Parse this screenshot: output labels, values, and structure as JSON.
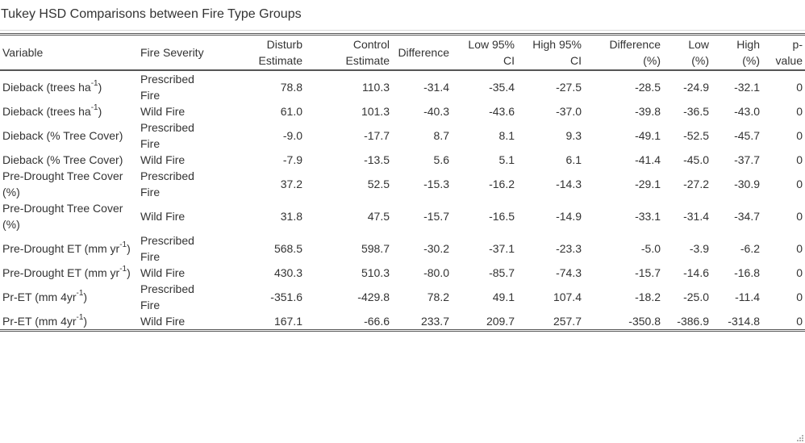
{
  "title": "Tukey HSD Comparisons between Fire Type Groups",
  "columns": {
    "variable": "Variable",
    "fire_severity": "Fire Severity",
    "disturb_1": "Disturb",
    "disturb_2": "Estimate",
    "control_1": "Control",
    "control_2": "Estimate",
    "difference": "Difference",
    "low_1": "Low 95%",
    "low_2": "CI",
    "high_1": "High 95%",
    "high_2": "CI",
    "diffpct_1": "Difference",
    "diffpct_2": "(%)",
    "lowpct_1": "Low",
    "lowpct_2": "(%)",
    "highpct_1": "High",
    "highpct_2": "(%)",
    "p_1": "p-",
    "p_2": "value"
  },
  "rows": [
    {
      "var": "Dieback (trees ha",
      "sup": "-1",
      "var_end": ")",
      "sev_1": "Prescribed",
      "sev_2": "Fire",
      "disturb": "78.8",
      "control": "110.3",
      "diff": "-31.4",
      "low": "-35.4",
      "high": "-27.5",
      "diffpct": "-28.5",
      "lowpct": "-24.9",
      "highpct": "-32.1",
      "p": "0"
    },
    {
      "var": "Dieback (trees ha",
      "sup": "-1",
      "var_end": ")",
      "sev_1": "Wild Fire",
      "sev_2": "",
      "disturb": "61.0",
      "control": "101.3",
      "diff": "-40.3",
      "low": "-43.6",
      "high": "-37.0",
      "diffpct": "-39.8",
      "lowpct": "-36.5",
      "highpct": "-43.0",
      "p": "0"
    },
    {
      "var": "Dieback (% Tree Cover)",
      "sup": "",
      "var_end": "",
      "sev_1": "Prescribed",
      "sev_2": "Fire",
      "disturb": "-9.0",
      "control": "-17.7",
      "diff": "8.7",
      "low": "8.1",
      "high": "9.3",
      "diffpct": "-49.1",
      "lowpct": "-52.5",
      "highpct": "-45.7",
      "p": "0"
    },
    {
      "var": "Dieback (% Tree Cover)",
      "sup": "",
      "var_end": "",
      "sev_1": "Wild Fire",
      "sev_2": "",
      "disturb": "-7.9",
      "control": "-13.5",
      "diff": "5.6",
      "low": "5.1",
      "high": "6.1",
      "diffpct": "-41.4",
      "lowpct": "-45.0",
      "highpct": "-37.7",
      "p": "0"
    },
    {
      "var": "Pre-Drought Tree Cover (%)",
      "sup": "",
      "var_end": "",
      "sev_1": "Prescribed",
      "sev_2": "Fire",
      "disturb": "37.2",
      "control": "52.5",
      "diff": "-15.3",
      "low": "-16.2",
      "high": "-14.3",
      "diffpct": "-29.1",
      "lowpct": "-27.2",
      "highpct": "-30.9",
      "p": "0"
    },
    {
      "var": "Pre-Drought Tree Cover (%)",
      "sup": "",
      "var_end": "",
      "sev_1": "Wild Fire",
      "sev_2": "",
      "disturb": "31.8",
      "control": "47.5",
      "diff": "-15.7",
      "low": "-16.5",
      "high": "-14.9",
      "diffpct": "-33.1",
      "lowpct": "-31.4",
      "highpct": "-34.7",
      "p": "0"
    },
    {
      "var": "Pre-Drought ET (mm yr",
      "sup": "-1",
      "var_end": ")",
      "sev_1": "Prescribed",
      "sev_2": "Fire",
      "disturb": "568.5",
      "control": "598.7",
      "diff": "-30.2",
      "low": "-37.1",
      "high": "-23.3",
      "diffpct": "-5.0",
      "lowpct": "-3.9",
      "highpct": "-6.2",
      "p": "0"
    },
    {
      "var": "Pre-Drought ET (mm yr",
      "sup": "-1",
      "var_end": ")",
      "sev_1": "Wild Fire",
      "sev_2": "",
      "disturb": "430.3",
      "control": "510.3",
      "diff": "-80.0",
      "low": "-85.7",
      "high": "-74.3",
      "diffpct": "-15.7",
      "lowpct": "-14.6",
      "highpct": "-16.8",
      "p": "0"
    },
    {
      "var": "Pr-ET (mm 4yr",
      "sup": "-1",
      "var_end": ")",
      "sev_1": "Prescribed",
      "sev_2": "Fire",
      "disturb": "-351.6",
      "control": "-429.8",
      "diff": "78.2",
      "low": "49.1",
      "high": "107.4",
      "diffpct": "-18.2",
      "lowpct": "-25.0",
      "highpct": "-11.4",
      "p": "0"
    },
    {
      "var": "Pr-ET (mm 4yr",
      "sup": "-1",
      "var_end": ")",
      "sev_1": "Wild Fire",
      "sev_2": "",
      "disturb": "167.1",
      "control": "-66.6",
      "diff": "233.7",
      "low": "209.7",
      "high": "257.7",
      "diffpct": "-350.8",
      "lowpct": "-386.9",
      "highpct": "-314.8",
      "p": "0"
    }
  ]
}
